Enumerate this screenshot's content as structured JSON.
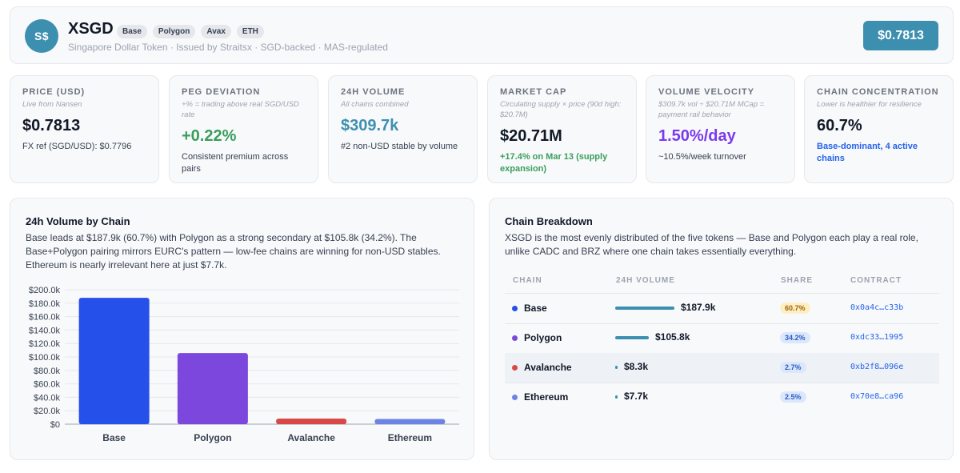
{
  "header": {
    "logo_text": "S$",
    "title": "XSGD",
    "tags": [
      "Base",
      "Polygon",
      "Avax",
      "ETH"
    ],
    "subtitle": "Singapore Dollar Token · Issued by Straitsx · SGD-backed · MAS-regulated",
    "price_button": "$0.7813"
  },
  "stats": [
    {
      "label": "PRICE (USD)",
      "sub": "Live from Nansen",
      "value": "$0.7813",
      "note": "FX ref (SGD/USD): $0.7796",
      "value_color": "#111827",
      "note_color": "#374151"
    },
    {
      "label": "PEG DEVIATION",
      "sub": "+% = trading above real SGD/USD rate",
      "value": "+0.22%",
      "note": "Consistent premium across pairs",
      "value_color": "#3a9d5d",
      "note_color": "#374151"
    },
    {
      "label": "24H VOLUME",
      "sub": "All chains combined",
      "value": "$309.7k",
      "note": "#2 non-USD stable by volume",
      "value_color": "#3d8fb0",
      "note_color": "#374151"
    },
    {
      "label": "MARKET CAP",
      "sub": "Circulating supply × price (90d high: $20.7M)",
      "value": "$20.71M",
      "note": "+17.4% on Mar 13 (supply expansion)",
      "value_color": "#111827",
      "note_color": "#3a9d5d"
    },
    {
      "label": "VOLUME VELOCITY",
      "sub": "$309.7k vol ÷ $20.71M MCap = payment rail behavior",
      "value": "1.50%/day",
      "note": "~10.5%/week turnover",
      "value_color": "#7c3aed",
      "note_color": "#374151"
    },
    {
      "label": "CHAIN CONCENTRATION",
      "sub": "Lower is healthier for resilience",
      "value": "60.7%",
      "note": "Base-dominant, 4 active chains",
      "value_color": "#111827",
      "note_color": "#2563eb"
    }
  ],
  "chart_panel": {
    "title": "24h Volume by Chain",
    "description": "Base leads at $187.9k (60.7%) with Polygon as a strong secondary at $105.8k (34.2%). The Base+Polygon pairing mirrors EURC's pattern — low-fee chains are winning for non-USD stables. Ethereum is nearly irrelevant here at just $7.7k."
  },
  "chart_data": {
    "type": "bar",
    "categories": [
      "Base",
      "Polygon",
      "Avalanche",
      "Ethereum"
    ],
    "values": [
      187900,
      105800,
      8300,
      7700
    ],
    "colors": [
      "#2550ea",
      "#7c47dc",
      "#d94848",
      "#6b84e6"
    ],
    "yticks": [
      "$0",
      "$20.0k",
      "$40.0k",
      "$60.0k",
      "$80.0k",
      "$100.0k",
      "$120.0k",
      "$140.0k",
      "$160.0k",
      "$180.0k",
      "$200.0k"
    ],
    "ylim": [
      0,
      200000
    ],
    "grid": true,
    "legend": "none"
  },
  "breakdown_panel": {
    "title": "Chain Breakdown",
    "description": "XSGD is the most evenly distributed of the five tokens — Base and Polygon each play a real role, unlike CADC and BRZ where one chain takes essentially everything.",
    "columns": [
      "CHAIN",
      "24H VOLUME",
      "SHARE",
      "CONTRACT"
    ],
    "rows": [
      {
        "chain": "Base",
        "volume": "$187.9k",
        "share": "60.7%",
        "contract": "0x0a4c…c33b",
        "dot": "#2550ea",
        "badge_bg": "#fdefc4",
        "badge_fg": "#a16207",
        "bar_ratio": 1.0
      },
      {
        "chain": "Polygon",
        "volume": "$105.8k",
        "share": "34.2%",
        "contract": "0xdc33…1995",
        "dot": "#7c47dc",
        "badge_bg": "#dbe7fb",
        "badge_fg": "#2b5cc9",
        "bar_ratio": 0.563
      },
      {
        "chain": "Avalanche",
        "volume": "$8.3k",
        "share": "2.7%",
        "contract": "0xb2f8…096e",
        "dot": "#d94848",
        "badge_bg": "#dbe7fb",
        "badge_fg": "#2b5cc9",
        "bar_ratio": 0.044
      },
      {
        "chain": "Ethereum",
        "volume": "$7.7k",
        "share": "2.5%",
        "contract": "0x70e8…ca96",
        "dot": "#6b84e6",
        "badge_bg": "#dbe7fb",
        "badge_fg": "#2b5cc9",
        "bar_ratio": 0.041
      }
    ]
  }
}
